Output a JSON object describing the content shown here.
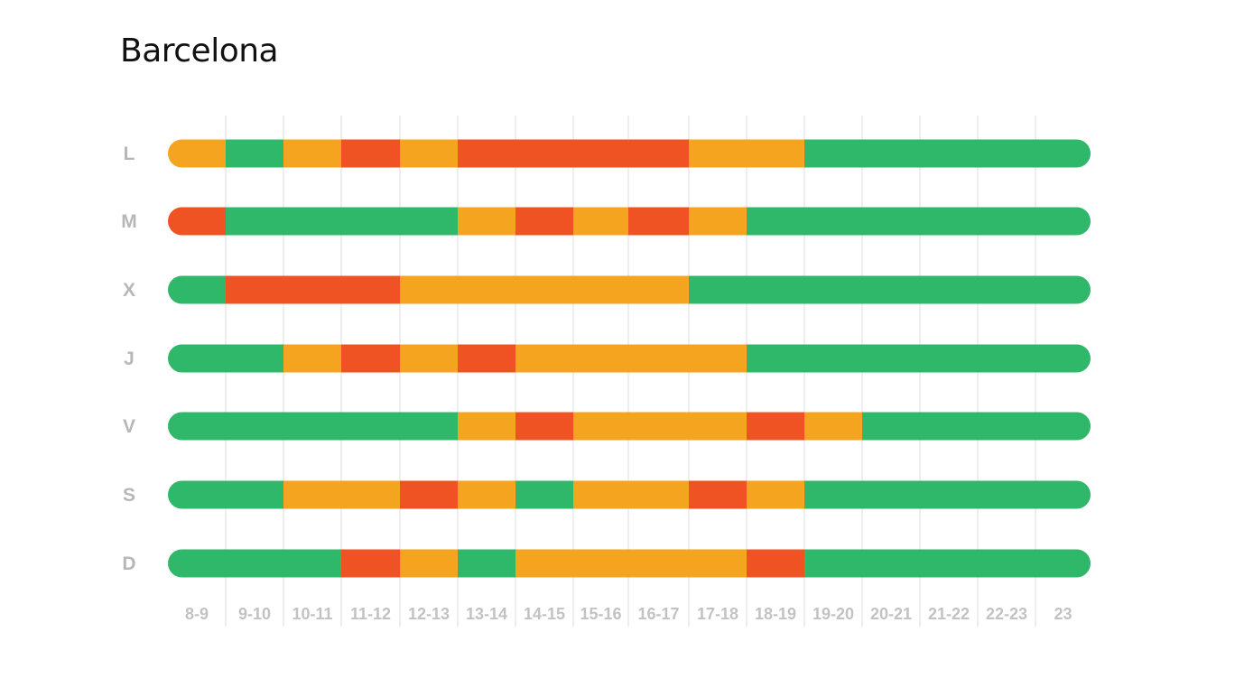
{
  "title": "Barcelona",
  "colors": {
    "green": "#2fb76a",
    "orange": "#f4a41f",
    "red": "#ef5223",
    "grid": "#dddddd"
  },
  "chart_data": {
    "type": "heatmap",
    "title": "Barcelona",
    "xlabel": "",
    "ylabel": "",
    "grid": true,
    "categories": [
      "8-9",
      "9-10",
      "10-11",
      "11-12",
      "12-13",
      "13-14",
      "14-15",
      "15-16",
      "16-17",
      "17-18",
      "18-19",
      "19-20",
      "20-21",
      "21-22",
      "22-23",
      "23"
    ],
    "rows": [
      {
        "label": "L",
        "values": [
          "orange",
          "green",
          "orange",
          "red",
          "orange",
          "red",
          "red",
          "red",
          "red",
          "orange",
          "orange",
          "green",
          "green",
          "green",
          "green",
          "green"
        ]
      },
      {
        "label": "M",
        "values": [
          "red",
          "green",
          "green",
          "green",
          "green",
          "orange",
          "red",
          "orange",
          "red",
          "orange",
          "green",
          "green",
          "green",
          "green",
          "green",
          "green"
        ]
      },
      {
        "label": "X",
        "values": [
          "green",
          "red",
          "red",
          "red",
          "orange",
          "orange",
          "orange",
          "orange",
          "orange",
          "green",
          "green",
          "green",
          "green",
          "green",
          "green",
          "green"
        ]
      },
      {
        "label": "J",
        "values": [
          "green",
          "green",
          "orange",
          "red",
          "orange",
          "red",
          "orange",
          "orange",
          "orange",
          "orange",
          "green",
          "green",
          "green",
          "green",
          "green",
          "green"
        ]
      },
      {
        "label": "V",
        "values": [
          "green",
          "green",
          "green",
          "green",
          "green",
          "orange",
          "red",
          "orange",
          "orange",
          "orange",
          "red",
          "orange",
          "green",
          "green",
          "green",
          "green"
        ]
      },
      {
        "label": "S",
        "values": [
          "green",
          "green",
          "orange",
          "orange",
          "red",
          "orange",
          "green",
          "orange",
          "orange",
          "red",
          "orange",
          "green",
          "green",
          "green",
          "green",
          "green"
        ]
      },
      {
        "label": "D",
        "values": [
          "green",
          "green",
          "green",
          "red",
          "orange",
          "green",
          "orange",
          "orange",
          "orange",
          "orange",
          "red",
          "green",
          "green",
          "green",
          "green",
          "green"
        ]
      }
    ]
  }
}
